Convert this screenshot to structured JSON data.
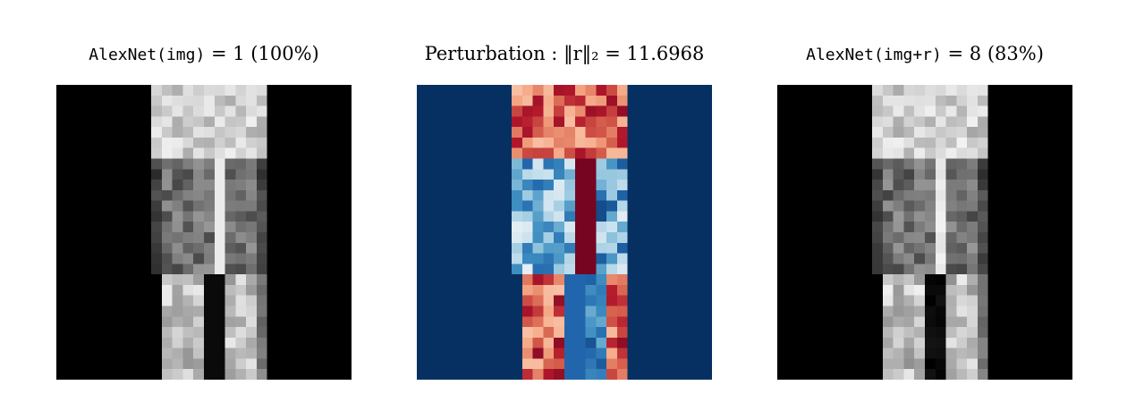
{
  "panels": [
    {
      "id": "original",
      "title": {
        "model": "AlexNet(img)",
        "rest": "= 1 (100%)"
      },
      "background": "#000000"
    },
    {
      "id": "perturbation",
      "title": {
        "label": "Perturbation :",
        "norm": "‖r‖₂ = 11.6968"
      },
      "background": "#08306b"
    },
    {
      "id": "adversarial",
      "title": {
        "model": "AlexNet(img+r)",
        "rest": "= 8 (83%)"
      },
      "background": "#000000"
    }
  ],
  "colors": {
    "diverging_neg_dark": "#08306b",
    "diverging_neg_mid": "#4393c3",
    "diverging_neutral": "#f7f7f7",
    "diverging_pos_mid": "#d6604d",
    "diverging_pos_dark": "#67001f"
  }
}
